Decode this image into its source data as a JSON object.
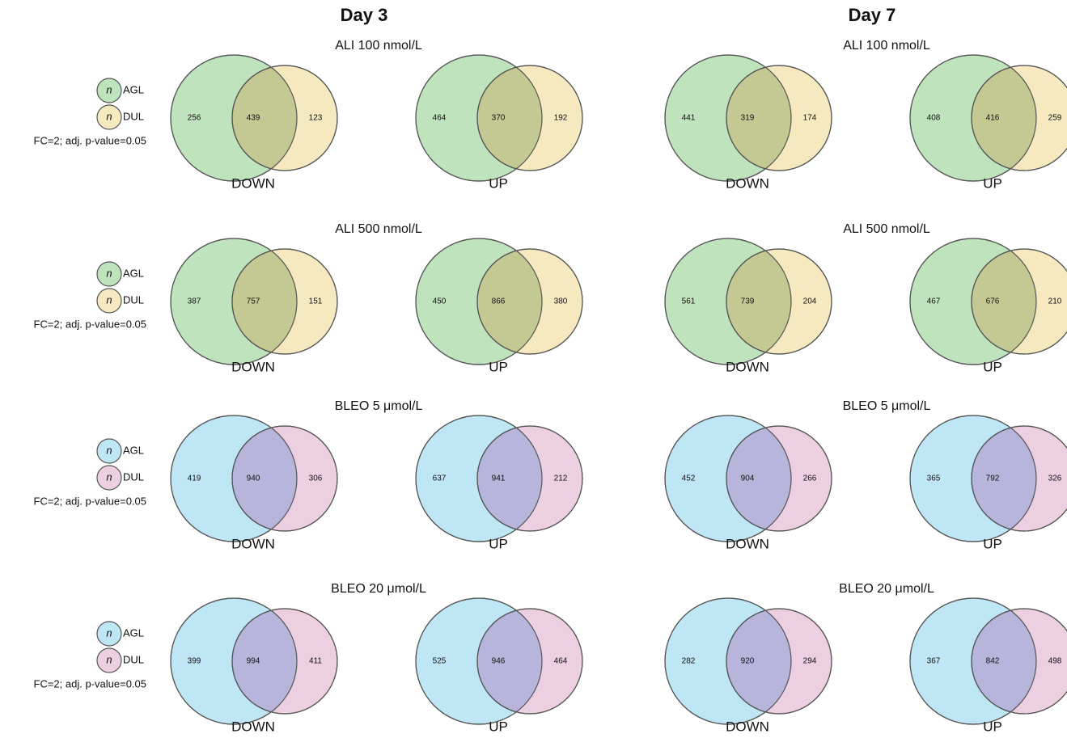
{
  "columns": [
    {
      "title": "Day 3",
      "rows": [
        {
          "title": "ALI 100 nmol/L",
          "venns": [
            {
              "label": "DOWN",
              "left": 256,
              "both": 439,
              "right": 123
            },
            {
              "label": "UP",
              "left": 464,
              "both": 370,
              "right": 192
            }
          ]
        },
        {
          "title": "ALI 500 nmol/L",
          "venns": [
            {
              "label": "DOWN",
              "left": 387,
              "both": 757,
              "right": 151
            },
            {
              "label": "UP",
              "left": 450,
              "both": 866,
              "right": 380
            }
          ]
        },
        {
          "title": "BLEO 5 μmol/L",
          "venns": [
            {
              "label": "DOWN",
              "left": 419,
              "both": 940,
              "right": 306
            },
            {
              "label": "UP",
              "left": 637,
              "both": 941,
              "right": 212
            }
          ]
        },
        {
          "title": "BLEO 20 μmol/L",
          "venns": [
            {
              "label": "DOWN",
              "left": 399,
              "both": 994,
              "right": 411
            },
            {
              "label": "UP",
              "left": 525,
              "both": 946,
              "right": 464
            }
          ]
        }
      ]
    },
    {
      "title": "Day 7",
      "rows": [
        {
          "title": "ALI 100 nmol/L",
          "venns": [
            {
              "label": "DOWN",
              "left": 441,
              "both": 319,
              "right": 174
            },
            {
              "label": "UP",
              "left": 408,
              "both": 416,
              "right": 259
            }
          ]
        },
        {
          "title": "ALI 500 nmol/L",
          "venns": [
            {
              "label": "DOWN",
              "left": 561,
              "both": 739,
              "right": 204
            },
            {
              "label": "UP",
              "left": 467,
              "both": 676,
              "right": 210
            }
          ]
        },
        {
          "title": "BLEO 5 μmol/L",
          "venns": [
            {
              "label": "DOWN",
              "left": 452,
              "both": 904,
              "right": 266
            },
            {
              "label": "UP",
              "left": 365,
              "both": 792,
              "right": 326
            }
          ]
        },
        {
          "title": "BLEO 20 μmol/L",
          "venns": [
            {
              "label": "DOWN",
              "left": 282,
              "both": 920,
              "right": 294
            },
            {
              "label": "UP",
              "left": 367,
              "both": 842,
              "right": 498
            }
          ]
        }
      ]
    }
  ],
  "legends": [
    {
      "items": [
        {
          "symbol": "n",
          "label": "AGL"
        },
        {
          "symbol": "n",
          "label": "DUL"
        }
      ],
      "note": "FC=2; adj. p-value=0.05"
    },
    {
      "items": [
        {
          "symbol": "n",
          "label": "AGL"
        },
        {
          "symbol": "n",
          "label": "DUL"
        }
      ],
      "note": "FC=2; adj. p-value=0.05"
    },
    {
      "items": [
        {
          "symbol": "n",
          "label": "AGL"
        },
        {
          "symbol": "n",
          "label": "DUL"
        }
      ],
      "note": "FC=2; adj. p-value=0.05"
    },
    {
      "items": [
        {
          "symbol": "n",
          "label": "AGL"
        },
        {
          "symbol": "n",
          "label": "DUL"
        }
      ],
      "note": "FC=2; adj. p-value=0.05"
    }
  ]
}
